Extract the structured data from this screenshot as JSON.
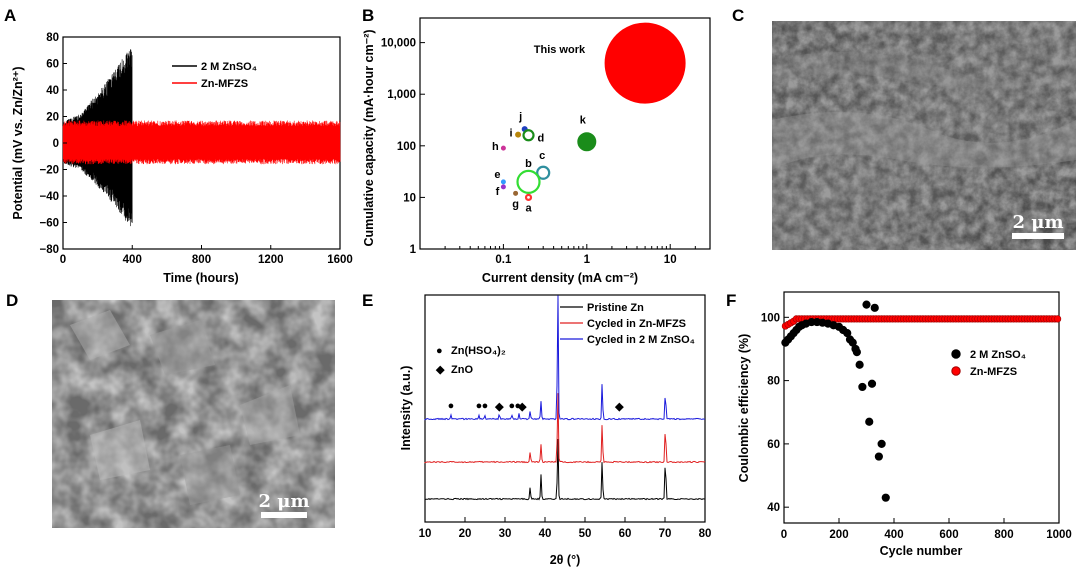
{
  "panel_labels": [
    "A",
    "B",
    "C",
    "D",
    "E",
    "F"
  ],
  "images": {
    "C": {
      "scale_bar": "2 μm"
    },
    "D": {
      "scale_bar": "2 μm"
    }
  },
  "chart_data": [
    {
      "panel": "A",
      "type": "line",
      "xlabel": "Time (hours)",
      "ylabel": "Potential (mV vs. Zn/Zn²⁺)",
      "xlim": [
        0,
        1600
      ],
      "ylim": [
        -80,
        80
      ],
      "xticks": [
        0,
        400,
        800,
        1200,
        1600
      ],
      "yticks": [
        -80,
        -60,
        -40,
        -20,
        0,
        20,
        40,
        60,
        80
      ],
      "legend_position": "top-right",
      "series": [
        {
          "name": "2 M ZnSO₄",
          "color": "#000000",
          "envelope": [
            [
              0,
              16
            ],
            [
              100,
              22
            ],
            [
              200,
              38
            ],
            [
              300,
              55
            ],
            [
              380,
              72
            ],
            [
              400,
              72
            ],
            [
              401,
              0
            ]
          ],
          "envelope_low": [
            [
              0,
              -16
            ],
            [
              100,
              -20
            ],
            [
              200,
              -33
            ],
            [
              300,
              -48
            ],
            [
              380,
              -63
            ],
            [
              400,
              -63
            ],
            [
              401,
              0
            ]
          ],
          "end_hours": 400
        },
        {
          "name": "Zn-MFZS",
          "color": "#ff0000",
          "envelope": [
            [
              0,
              17
            ],
            [
              1600,
              17
            ]
          ],
          "envelope_low": [
            [
              0,
              -16
            ],
            [
              1600,
              -16
            ]
          ],
          "end_hours": 1600
        }
      ]
    },
    {
      "panel": "B",
      "type": "scatter",
      "xlabel": "Current density (mA cm⁻²)",
      "ylabel": "Cumulative capacity (mA·hour cm⁻²)",
      "xscale": "log",
      "yscale": "log",
      "xlim": [
        0.01,
        30
      ],
      "ylim": [
        1,
        30000
      ],
      "xtick_labels": [
        "0.1",
        "1",
        "10"
      ],
      "ytick_labels": [
        "1",
        "10",
        "100",
        "1,000",
        "10,000"
      ],
      "points": [
        {
          "label": "This work",
          "x": 5,
          "y": 4000,
          "size": 40,
          "color": "#ff0000",
          "filled": true
        },
        {
          "label": "k",
          "x": 1,
          "y": 120,
          "size": 9,
          "color": "#1a8c1a",
          "filled": true
        },
        {
          "label": "j",
          "x": 0.18,
          "y": 210,
          "size": 2.5,
          "color": "#1f3fbf",
          "filled": true
        },
        {
          "label": "i",
          "x": 0.15,
          "y": 165,
          "size": 2.5,
          "color": "#b8860b",
          "filled": true
        },
        {
          "label": "d",
          "x": 0.2,
          "y": 160,
          "size": 5,
          "color": "#1a8c1a",
          "filled": false
        },
        {
          "label": "h",
          "x": 0.1,
          "y": 90,
          "size": 2,
          "color": "#cc3399",
          "filled": true
        },
        {
          "label": "c",
          "x": 0.3,
          "y": 30,
          "size": 6,
          "color": "#2f8f9f",
          "filled": false
        },
        {
          "label": "b",
          "x": 0.2,
          "y": 20,
          "size": 11,
          "color": "#33dd33",
          "filled": false
        },
        {
          "label": "e",
          "x": 0.1,
          "y": 20,
          "size": 2,
          "color": "#3399ff",
          "filled": true
        },
        {
          "label": "f",
          "x": 0.1,
          "y": 16,
          "size": 2,
          "color": "#9933cc",
          "filled": true
        },
        {
          "label": "g",
          "x": 0.14,
          "y": 12,
          "size": 2,
          "color": "#996633",
          "filled": true
        },
        {
          "label": "a",
          "x": 0.2,
          "y": 10,
          "size": 2.5,
          "color": "#ff3333",
          "filled": false
        }
      ]
    },
    {
      "panel": "E",
      "type": "line",
      "xlabel": "2θ (°)",
      "ylabel": "Intensity (a.u.)",
      "xlim": [
        10,
        80
      ],
      "xticks": [
        10,
        20,
        30,
        40,
        50,
        60,
        70,
        80
      ],
      "legend_position": "top-right",
      "series": [
        {
          "name": "Pristine Zn",
          "color": "#000000",
          "peaks": [
            [
              36.3,
              12
            ],
            [
              39.0,
              25
            ],
            [
              43.2,
              65
            ],
            [
              54.3,
              40
            ],
            [
              70.1,
              45
            ]
          ]
        },
        {
          "name": "Cycled in Zn-MFZS",
          "color": "#e02020",
          "peaks": [
            [
              36.3,
              10
            ],
            [
              39.0,
              18
            ],
            [
              43.2,
              75
            ],
            [
              54.3,
              40
            ],
            [
              70.1,
              40
            ]
          ]
        },
        {
          "name": "Cycled in 2 M ZnSO₄",
          "color": "#1a1adc",
          "peaks": [
            [
              16.5,
              4
            ],
            [
              23.5,
              4
            ],
            [
              25.0,
              4
            ],
            [
              28.6,
              5
            ],
            [
              31.7,
              4
            ],
            [
              33.5,
              5
            ],
            [
              36.3,
              8
            ],
            [
              39.0,
              18
            ],
            [
              43.2,
              135
            ],
            [
              54.3,
              38
            ],
            [
              70.1,
              30
            ]
          ]
        }
      ],
      "markers": [
        {
          "name": "Zn(HSO₄)₂",
          "symbol": "●",
          "positions": [
            16.5,
            23.5,
            25.0,
            31.7,
            33.2
          ]
        },
        {
          "name": "ZnO",
          "symbol": "◆",
          "positions": [
            28.6,
            34.3,
            58.6
          ]
        }
      ]
    },
    {
      "panel": "F",
      "type": "scatter",
      "xlabel": "Cycle number",
      "ylabel": "Coulombic efficiency (%)",
      "xlim": [
        0,
        1000
      ],
      "ylim": [
        35,
        108
      ],
      "xticks": [
        0,
        200,
        400,
        600,
        800,
        1000
      ],
      "yticks": [
        40,
        60,
        80,
        100
      ],
      "legend_position": "center-right",
      "series": [
        {
          "name": "2 M ZnSO₄",
          "color": "#000000",
          "points": [
            [
              5,
              92
            ],
            [
              15,
              93
            ],
            [
              25,
              94
            ],
            [
              35,
              95
            ],
            [
              45,
              96
            ],
            [
              55,
              97
            ],
            [
              65,
              97.5
            ],
            [
              80,
              98
            ],
            [
              100,
              98.5
            ],
            [
              120,
              98.5
            ],
            [
              140,
              98.3
            ],
            [
              160,
              98
            ],
            [
              180,
              97.5
            ],
            [
              200,
              97
            ],
            [
              215,
              96
            ],
            [
              230,
              95
            ],
            [
              240,
              93
            ],
            [
              250,
              92
            ],
            [
              260,
              90
            ],
            [
              265,
              89
            ],
            [
              275,
              85
            ],
            [
              285,
              78
            ],
            [
              300,
              104
            ],
            [
              310,
              67
            ],
            [
              320,
              79
            ],
            [
              330,
              103
            ],
            [
              345,
              56
            ],
            [
              355,
              60
            ],
            [
              370,
              43
            ]
          ]
        },
        {
          "name": "Zn-MFZS",
          "color": "#ff0000",
          "points": "flat_99.5_to_1000"
        }
      ]
    }
  ]
}
